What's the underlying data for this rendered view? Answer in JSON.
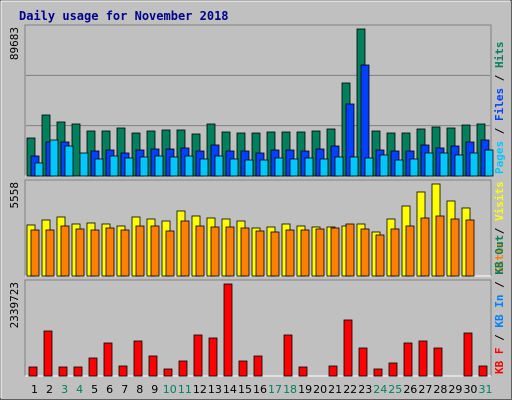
{
  "colors": {
    "hits": "#00805c",
    "files": "#0040ff",
    "pages": "#00c8ff",
    "visits": "#ffff00",
    "sites": "#ff8000",
    "kbf": "#ff0000",
    "kbin": "#0080ff",
    "kbout": "#00805c",
    "sep": "#000000",
    "weekday": "#000000",
    "weekend": "#00805c"
  },
  "chart_data": {
    "type": "bar",
    "title": "Daily usage for November 2018",
    "categories": [
      "1",
      "2",
      "3",
      "4",
      "5",
      "6",
      "7",
      "8",
      "9",
      "10",
      "11",
      "12",
      "13",
      "14",
      "15",
      "16",
      "17",
      "18",
      "19",
      "20",
      "21",
      "22",
      "23",
      "24",
      "25",
      "26",
      "27",
      "28",
      "29",
      "30",
      "31"
    ],
    "weekend_days": [
      3,
      4,
      10,
      11,
      17,
      18,
      24,
      25,
      31
    ],
    "panels": [
      {
        "max_label": "89683",
        "ylim": [
          0,
          89683
        ],
        "side_legend": [
          {
            "text": "Pages",
            "color_key": "pages"
          },
          {
            "text": "Files",
            "color_key": "files"
          },
          {
            "text": "Hits",
            "color_key": "hits"
          }
        ],
        "series": [
          {
            "name": "Hits",
            "color_key": "hits",
            "values": [
              23000,
              37000,
              33000,
              32000,
              27500,
              27500,
              29500,
              26000,
              27500,
              28000,
              28000,
              25500,
              32000,
              27000,
              26500,
              26500,
              27000,
              27000,
              27000,
              27500,
              28500,
              57000,
              89683,
              27500,
              26500,
              26500,
              28500,
              30000,
              29000,
              31000,
              32000
            ]
          },
          {
            "name": "Files",
            "color_key": "files",
            "values": [
              12500,
              21000,
              20500,
              0,
              15500,
              16000,
              14000,
              16000,
              16500,
              16500,
              17000,
              15000,
              19000,
              15500,
              15000,
              14000,
              16000,
              16000,
              15500,
              16500,
              18000,
              44000,
              68000,
              16000,
              15500,
              15000,
              19000,
              17000,
              18000,
              20500,
              22000
            ]
          },
          {
            "name": "Pages",
            "color_key": "pages",
            "values": [
              8000,
              22000,
              18000,
              14000,
              10500,
              12000,
              11000,
              11500,
              12000,
              11500,
              12500,
              10500,
              12000,
              10500,
              10000,
              9500,
              11000,
              10500,
              11000,
              10500,
              11500,
              11500,
              11000,
              13000,
              10000,
              10500,
              14000,
              14000,
              13000,
              14000,
              16000
            ]
          }
        ]
      },
      {
        "max_label": "5558",
        "ylim": [
          0,
          5558
        ],
        "side_legend": [
          {
            "text": "Sites",
            "color_key": "sites"
          },
          {
            "text": "Visits",
            "color_key": "visits"
          }
        ],
        "series": [
          {
            "name": "Visits",
            "color_key": "visits",
            "values": [
              3100,
              3400,
              3550,
              3150,
              3200,
              3150,
              3000,
              3550,
              3450,
              3300,
              3900,
              3600,
              3500,
              3450,
              3350,
              2900,
              2950,
              3150,
              3000,
              2950,
              2950,
              3050,
              3150,
              2650,
              3450,
              4250,
              5100,
              5558,
              4550,
              4100,
              0
            ]
          },
          {
            "name": "Sites",
            "color_key": "sites",
            "values": [
              2800,
              2800,
              3050,
              2850,
              2800,
              2900,
              2750,
              3000,
              3050,
              2700,
              3300,
              3000,
              2950,
              2950,
              2900,
              2700,
              2650,
              2800,
              2800,
              2850,
              2900,
              3150,
              2850,
              2500,
              2850,
              3050,
              3500,
              3600,
              3450,
              3400,
              0
            ]
          }
        ]
      },
      {
        "max_label": "2339723",
        "ylim": [
          0,
          2339723
        ],
        "side_legend": [
          {
            "text": "KB F",
            "color_key": "kbf"
          },
          {
            "text": "KB In",
            "color_key": "kbin"
          },
          {
            "text": "KB Out",
            "color_key": "kbout"
          }
        ],
        "series": [
          {
            "name": "KB F",
            "color_key": "kbf",
            "values": [
              230000,
              1150000,
              230000,
              230000,
              450000,
              840000,
              260000,
              880000,
              510000,
              190000,
              380000,
              1030000,
              960000,
              2339723,
              380000,
              510000,
              0,
              1030000,
              230000,
              0,
              260000,
              1430000,
              700000,
              190000,
              330000,
              850000,
              880000,
              700000,
              0,
              1100000,
              260000
            ]
          }
        ]
      }
    ]
  }
}
